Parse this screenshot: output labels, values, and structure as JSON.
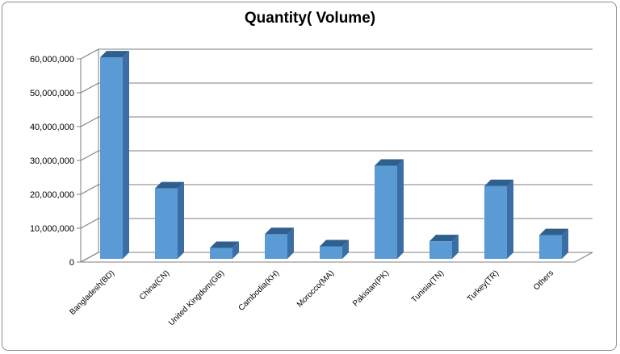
{
  "chart_data": {
    "type": "bar",
    "title": "Quantity( Volume)",
    "xlabel": "",
    "ylabel": "",
    "categories": [
      "Bangladesh(BD)",
      "China(CN)",
      "United Kingdom(GB)",
      "Cambodia(KH)",
      "Morocco(MA)",
      "Pakistan(PK)",
      "Tunisia(TN)",
      "Turkey(TR)",
      "Others"
    ],
    "values": [
      59500000,
      20800000,
      3200000,
      7300000,
      3700000,
      27500000,
      5200000,
      21500000,
      7000000
    ],
    "ylim": [
      0,
      60000000
    ],
    "yticks": [
      0,
      10000000,
      20000000,
      30000000,
      40000000,
      50000000,
      60000000
    ],
    "ytick_labels": [
      "0",
      "10,000,000",
      "20,000,000",
      "30,000,000",
      "40,000,000",
      "50,000,000",
      "60,000,000"
    ],
    "grid": true,
    "legend": "none",
    "colors": {
      "bar_front": "#5b9bd5",
      "bar_side": "#3a6ea5",
      "bar_top": "#2f5f8e",
      "grid": "#7f7f7f"
    }
  }
}
